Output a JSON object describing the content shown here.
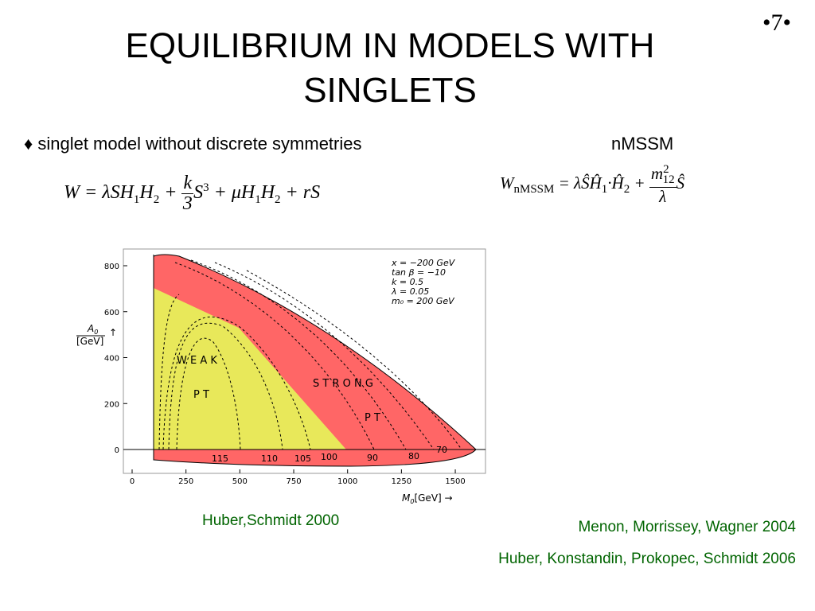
{
  "slide_number": "7",
  "title": "EQUILIBRIUM IN MODELS WITH SINGLETS",
  "bullet": "♦ singlet model without discrete symmetries",
  "right_heading": "nMSSM",
  "formula_left": [
    "W = λSH",
    "1",
    "H",
    "2",
    " + ",
    "k",
    "3",
    "S",
    "3",
    " + μH",
    "1",
    "H",
    "2",
    " + rS"
  ],
  "formula_right": [
    "W",
    "nMSSM",
    " = λŜĤ",
    "1",
    "·Ĥ",
    "2",
    " + ",
    "m",
    "2",
    "12",
    "λ",
    "Ŝ"
  ],
  "figure": {
    "yticks": [
      0,
      200,
      400,
      600,
      800
    ],
    "xticks": [
      0,
      250,
      500,
      750,
      1000,
      1250,
      1500
    ],
    "y_label": [
      "A",
      "0",
      "[GeV]",
      "↑"
    ],
    "x_label": [
      "M",
      "0",
      "[GeV] →"
    ],
    "parameters": [
      "x = −200 GeV",
      "tan β = −10",
      "k = 0.5",
      "λ = 0.05",
      "m₀ = 200 GeV"
    ],
    "regions": [
      "W E A K",
      "P T",
      "S T R O N G",
      "P T"
    ],
    "contour_labels": [
      "115",
      "110",
      "105",
      "100",
      "90",
      "80",
      "70"
    ]
  },
  "citations": [
    "Huber,Schmidt 2000",
    "Menon, Morrissey, Wagner 2004",
    "Huber, Konstandin, Prokopec, Schmidt 2006"
  ]
}
